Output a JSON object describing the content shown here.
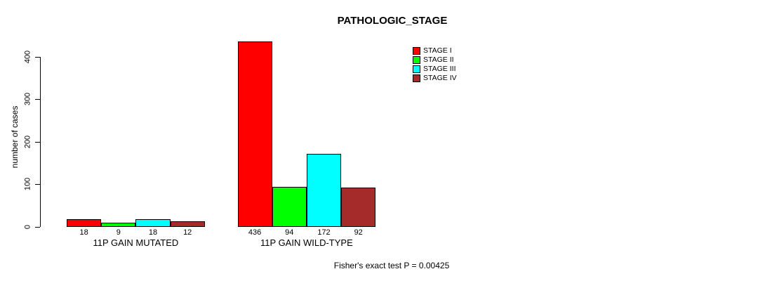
{
  "title": "PATHOLOGIC_STAGE",
  "y_axis": {
    "label": "number of cases",
    "ticks": [
      0,
      100,
      200,
      300,
      400
    ]
  },
  "legend": {
    "items": [
      {
        "label": "STAGE I",
        "color": "#FF0000"
      },
      {
        "label": "STAGE II",
        "color": "#00FF00"
      },
      {
        "label": "STAGE III",
        "color": "#00FFFF"
      },
      {
        "label": "STAGE IV",
        "color": "#A52A2A"
      }
    ]
  },
  "footer": "Fisher's exact test P = 0.00425",
  "chart_data": {
    "type": "bar",
    "title": "PATHOLOGIC_STAGE",
    "categories": [
      "11P GAIN MUTATED",
      "11P GAIN WILD-TYPE"
    ],
    "series": [
      {
        "name": "STAGE I",
        "color": "#FF0000",
        "values": [
          18,
          436
        ]
      },
      {
        "name": "STAGE II",
        "color": "#00FF00",
        "values": [
          9,
          94
        ]
      },
      {
        "name": "STAGE III",
        "color": "#00FFFF",
        "values": [
          18,
          172
        ]
      },
      {
        "name": "STAGE IV",
        "color": "#A52A2A",
        "values": [
          12,
          92
        ]
      }
    ],
    "ylabel": "number of cases",
    "ylim": [
      0,
      400
    ],
    "yticks": [
      0,
      100,
      200,
      300,
      400
    ],
    "grid": false,
    "legend_position": "top-right",
    "bar_labels_shown": true,
    "annotation": "Fisher's exact test P = 0.00425"
  }
}
